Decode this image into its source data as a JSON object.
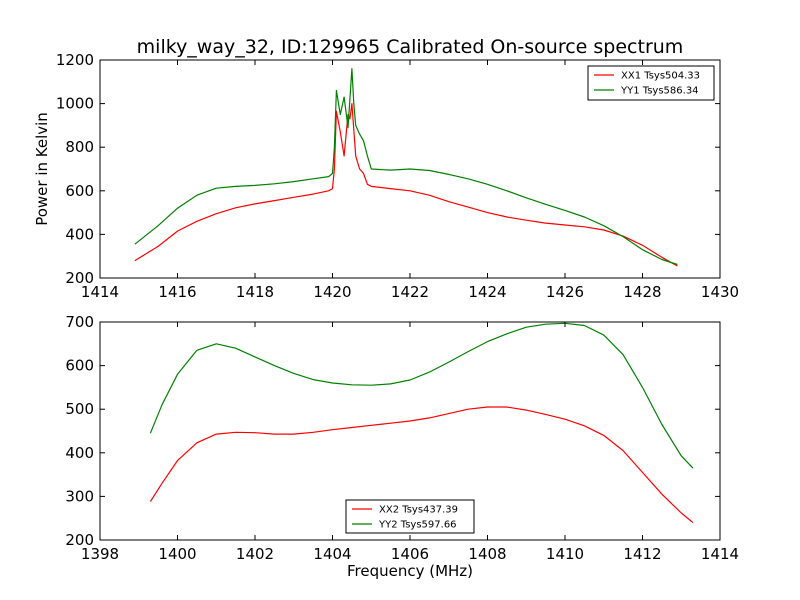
{
  "title": "milky_way_32, ID:129965 Calibrated On-source spectrum",
  "chart_data": [
    {
      "type": "line",
      "xlabel": "",
      "ylabel": "Power in Kelvin",
      "xlim": [
        1414,
        1430
      ],
      "ylim": [
        200,
        1200
      ],
      "xticks": [
        "1414",
        "1416",
        "1418",
        "1420",
        "1422",
        "1424",
        "1426",
        "1428",
        "1430"
      ],
      "yticks": [
        "200",
        "400",
        "600",
        "800",
        "1000",
        "1200"
      ],
      "grid": false,
      "legend_position": "top-right",
      "series": [
        {
          "name": "XX1 Tsys504.33",
          "color": "#ff0000",
          "x": [
            1414.9,
            1415.5,
            1416.0,
            1416.5,
            1417.0,
            1417.5,
            1418.0,
            1418.5,
            1419.0,
            1419.5,
            1419.9,
            1420.0,
            1420.05,
            1420.1,
            1420.2,
            1420.3,
            1420.4,
            1420.45,
            1420.5,
            1420.55,
            1420.6,
            1420.7,
            1420.8,
            1420.9,
            1421.0,
            1421.5,
            1422.0,
            1422.5,
            1423.0,
            1423.5,
            1424.0,
            1424.5,
            1425.0,
            1425.5,
            1426.0,
            1426.5,
            1427.0,
            1427.5,
            1428.0,
            1428.5,
            1428.9
          ],
          "values": [
            280,
            345,
            415,
            460,
            495,
            522,
            540,
            555,
            570,
            585,
            600,
            610,
            700,
            965,
            870,
            760,
            950,
            930,
            1000,
            880,
            760,
            700,
            680,
            630,
            620,
            610,
            600,
            580,
            550,
            525,
            500,
            480,
            465,
            452,
            443,
            435,
            420,
            392,
            350,
            295,
            255
          ]
        },
        {
          "name": "YY1 Tsys586.34",
          "color": "#008000",
          "x": [
            1414.9,
            1415.5,
            1416.0,
            1416.5,
            1417.0,
            1417.5,
            1418.0,
            1418.5,
            1419.0,
            1419.5,
            1419.9,
            1420.0,
            1420.05,
            1420.1,
            1420.2,
            1420.3,
            1420.4,
            1420.45,
            1420.5,
            1420.55,
            1420.6,
            1420.7,
            1420.8,
            1420.9,
            1421.0,
            1421.5,
            1422.0,
            1422.5,
            1423.0,
            1423.5,
            1424.0,
            1424.5,
            1425.0,
            1425.5,
            1426.0,
            1426.5,
            1427.0,
            1427.5,
            1428.0,
            1428.5,
            1428.9
          ],
          "values": [
            355,
            440,
            520,
            580,
            612,
            620,
            625,
            632,
            642,
            655,
            665,
            680,
            800,
            1060,
            950,
            1030,
            890,
            1020,
            1160,
            1000,
            900,
            860,
            830,
            760,
            700,
            695,
            700,
            693,
            675,
            655,
            630,
            600,
            568,
            538,
            510,
            480,
            440,
            390,
            330,
            285,
            262
          ]
        }
      ]
    },
    {
      "type": "line",
      "xlabel": "Frequency (MHz)",
      "ylabel": "",
      "xlim": [
        1398,
        1414
      ],
      "ylim": [
        200,
        700
      ],
      "xticks": [
        "1398",
        "1400",
        "1402",
        "1404",
        "1406",
        "1408",
        "1410",
        "1412",
        "1414"
      ],
      "yticks": [
        "200",
        "300",
        "400",
        "500",
        "600",
        "700"
      ],
      "grid": false,
      "legend_position": "bottom-center",
      "series": [
        {
          "name": "XX2 Tsys437.39",
          "color": "#ff0000",
          "x": [
            1399.3,
            1399.6,
            1400.0,
            1400.5,
            1401.0,
            1401.5,
            1402.0,
            1402.5,
            1403.0,
            1403.5,
            1404.0,
            1404.5,
            1405.0,
            1405.5,
            1406.0,
            1406.5,
            1407.0,
            1407.5,
            1408.0,
            1408.5,
            1409.0,
            1409.5,
            1410.0,
            1410.5,
            1411.0,
            1411.5,
            1412.0,
            1412.5,
            1413.0,
            1413.3
          ],
          "values": [
            288,
            330,
            382,
            423,
            443,
            447,
            446,
            443,
            443,
            447,
            453,
            458,
            463,
            468,
            473,
            480,
            490,
            500,
            505,
            505,
            498,
            488,
            477,
            462,
            440,
            405,
            355,
            305,
            262,
            240
          ]
        },
        {
          "name": "YY2 Tsys597.66",
          "color": "#008000",
          "x": [
            1399.3,
            1399.6,
            1400.0,
            1400.5,
            1401.0,
            1401.5,
            1402.0,
            1402.5,
            1403.0,
            1403.5,
            1404.0,
            1404.5,
            1405.0,
            1405.5,
            1406.0,
            1406.5,
            1407.0,
            1407.5,
            1408.0,
            1408.5,
            1409.0,
            1409.5,
            1410.0,
            1410.5,
            1411.0,
            1411.5,
            1412.0,
            1412.5,
            1413.0,
            1413.3
          ],
          "values": [
            445,
            510,
            580,
            635,
            650,
            640,
            620,
            600,
            582,
            568,
            560,
            556,
            555,
            558,
            567,
            585,
            608,
            632,
            655,
            673,
            688,
            695,
            697,
            692,
            670,
            625,
            550,
            465,
            393,
            365
          ]
        }
      ]
    }
  ]
}
